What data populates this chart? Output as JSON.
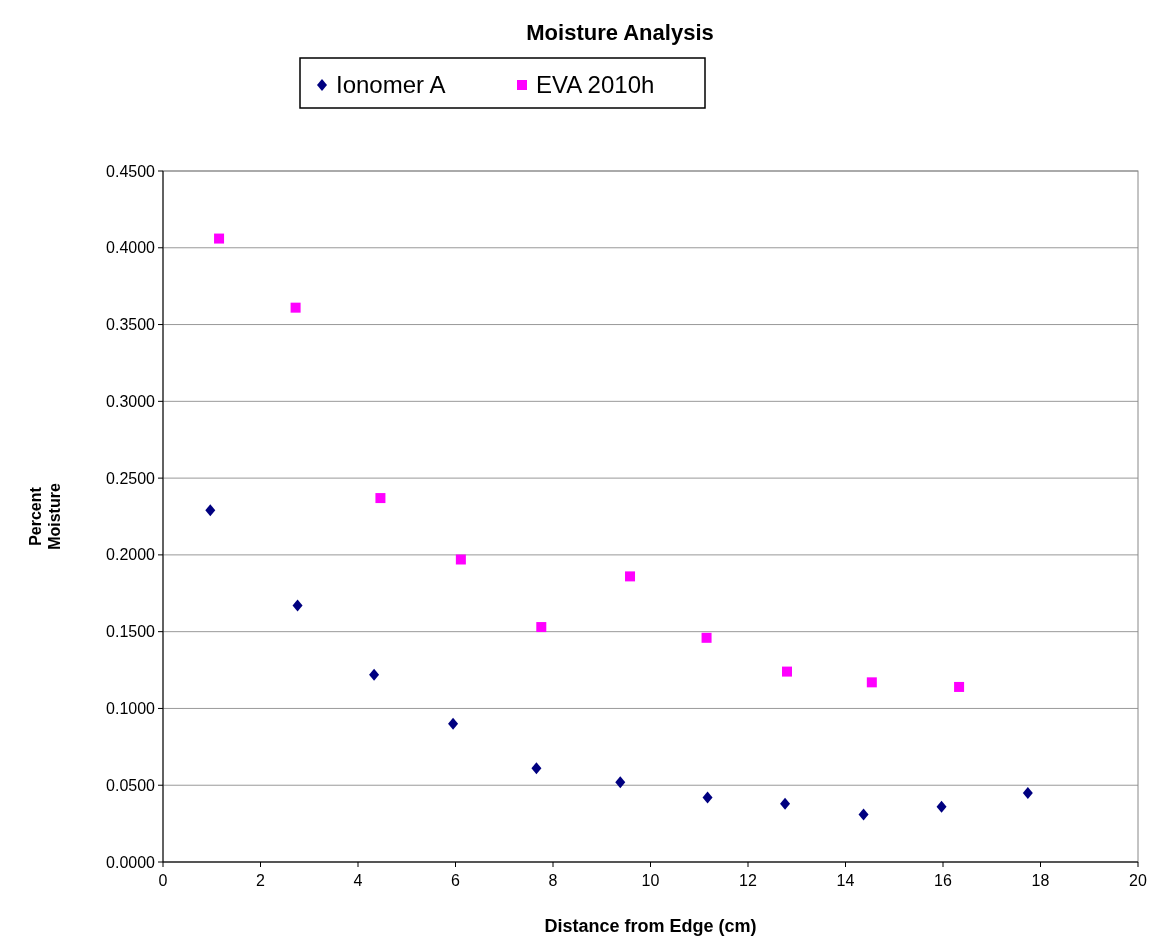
{
  "chart_data": {
    "type": "scatter",
    "title": "Moisture Analysis",
    "xlabel": "Distance from Edge (cm)",
    "ylabel": "Percent Moisture",
    "xlim": [
      0,
      20
    ],
    "xticks": [
      0,
      2,
      4,
      6,
      8,
      10,
      12,
      14,
      16,
      18,
      20
    ],
    "ylim": [
      0,
      0.45
    ],
    "yticks": [
      {
        "value": 0,
        "label": "0.0000"
      },
      {
        "value": 0.05,
        "label": "0.0500"
      },
      {
        "value": 0.1,
        "label": "0.1000"
      },
      {
        "value": 0.15,
        "label": "0.1500"
      },
      {
        "value": 0.2,
        "label": "0.2000"
      },
      {
        "value": 0.25,
        "label": "0.2500"
      },
      {
        "value": 0.3,
        "label": "0.3000"
      },
      {
        "value": 0.35,
        "label": "0.3500"
      },
      {
        "value": 0.4,
        "label": "0.4000"
      },
      {
        "value": 0.45,
        "label": "0.4500"
      }
    ],
    "grid": "y",
    "legend": "top",
    "series": [
      {
        "name": "Ionomer A",
        "color": "#000080",
        "marker": "diamond",
        "x": [
          0.97,
          2.76,
          4.33,
          5.95,
          7.66,
          9.38,
          11.17,
          12.76,
          14.37,
          15.97,
          17.74
        ],
        "values": [
          0.229,
          0.167,
          0.122,
          0.09,
          0.061,
          0.052,
          0.042,
          0.038,
          0.031,
          0.036,
          0.045
        ]
      },
      {
        "name": "EVA 2010h",
        "color": "#ff00ff",
        "marker": "square",
        "x": [
          1.15,
          2.72,
          4.46,
          6.11,
          7.76,
          9.58,
          11.15,
          12.8,
          14.54,
          16.33
        ],
        "values": [
          0.406,
          0.361,
          0.237,
          0.197,
          0.153,
          0.186,
          0.146,
          0.124,
          0.117,
          0.114
        ]
      }
    ]
  }
}
